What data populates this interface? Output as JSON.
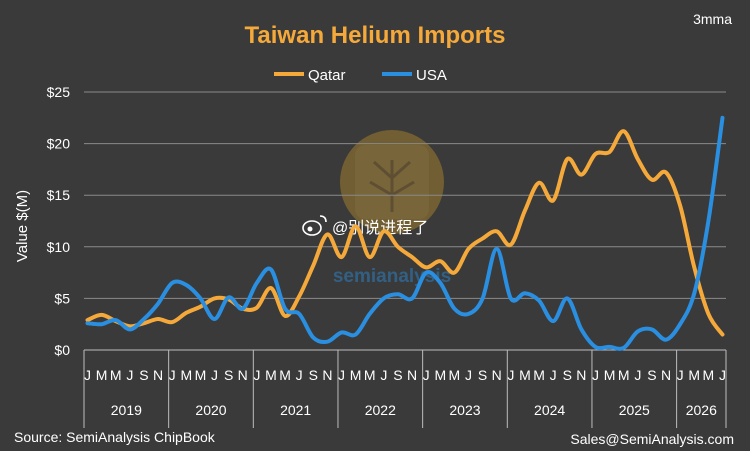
{
  "chart_data": {
    "type": "line",
    "title": "Taiwan Helium Imports",
    "subtitle": "3mma",
    "ylabel": "Value $(M)",
    "xlabel": "",
    "ylim": [
      0,
      25
    ],
    "y_ticks": [
      "$0",
      "$5",
      "$10",
      "$15",
      "$20",
      "$25"
    ],
    "grid": "horizontal",
    "legend_position": "top-center",
    "month_labels": [
      "J",
      "M",
      "M",
      "J",
      "S",
      "N"
    ],
    "years": [
      "2019",
      "2020",
      "2021",
      "2022",
      "2023",
      "2024",
      "2025",
      "2026"
    ],
    "last_year_month_labels": [
      "J",
      "M",
      "M",
      "J"
    ],
    "x_months": [
      0,
      2,
      4,
      6,
      8,
      10,
      12,
      14,
      16,
      18,
      20,
      22,
      24,
      26,
      28,
      30,
      32,
      34,
      36,
      38,
      40,
      42,
      44,
      46,
      48,
      50,
      52,
      54,
      56,
      58,
      60,
      62,
      64,
      66,
      68,
      70,
      72,
      74,
      76,
      78,
      80,
      82,
      84,
      86,
      88,
      90
    ],
    "series": [
      {
        "name": "Qatar",
        "color": "#f5a93a",
        "values": [
          2.9,
          3.4,
          2.8,
          2.3,
          2.6,
          3.0,
          2.7,
          3.6,
          4.2,
          5.0,
          4.9,
          4.0,
          4.1,
          6.0,
          3.3,
          5.2,
          8.2,
          11.2,
          9.0,
          12.0,
          9.0,
          11.5,
          10.0,
          9.0,
          8.0,
          8.6,
          7.5,
          9.8,
          10.8,
          11.5,
          10.2,
          13.5,
          16.2,
          14.5,
          18.5,
          17.0,
          19.0,
          19.2,
          21.2,
          18.5,
          16.5,
          17.2,
          14.0,
          8.0,
          3.5,
          1.5
        ]
      },
      {
        "name": "USA",
        "color": "#2a8fe0",
        "values": [
          2.6,
          2.5,
          2.9,
          2.0,
          3.0,
          4.5,
          6.5,
          6.3,
          5.0,
          3.0,
          5.1,
          4.0,
          6.5,
          7.8,
          4.0,
          3.5,
          1.2,
          0.8,
          1.7,
          1.5,
          3.5,
          5.0,
          5.4,
          5.0,
          7.5,
          6.5,
          4.0,
          3.5,
          5.0,
          9.8,
          5.0,
          5.5,
          4.8,
          2.8,
          5.0,
          2.0,
          0.3,
          0.3,
          0.2,
          1.8,
          2.0,
          1.0,
          2.5,
          5.5,
          12.5,
          22.5
        ]
      }
    ],
    "footer_left": "Source: SemiAnalysis ChipBook",
    "footer_right": "Sales@SemiAnalysis.com",
    "colors": {
      "background": "#3a3a3a",
      "gridline": "#8a8a8a",
      "title": "#f5a93a"
    }
  },
  "watermark": {
    "brand": "semianalysis",
    "overlay_text": "@别说进程了",
    "icon": "weibo-icon",
    "logo_icon": "tree-chip-logo-icon"
  }
}
